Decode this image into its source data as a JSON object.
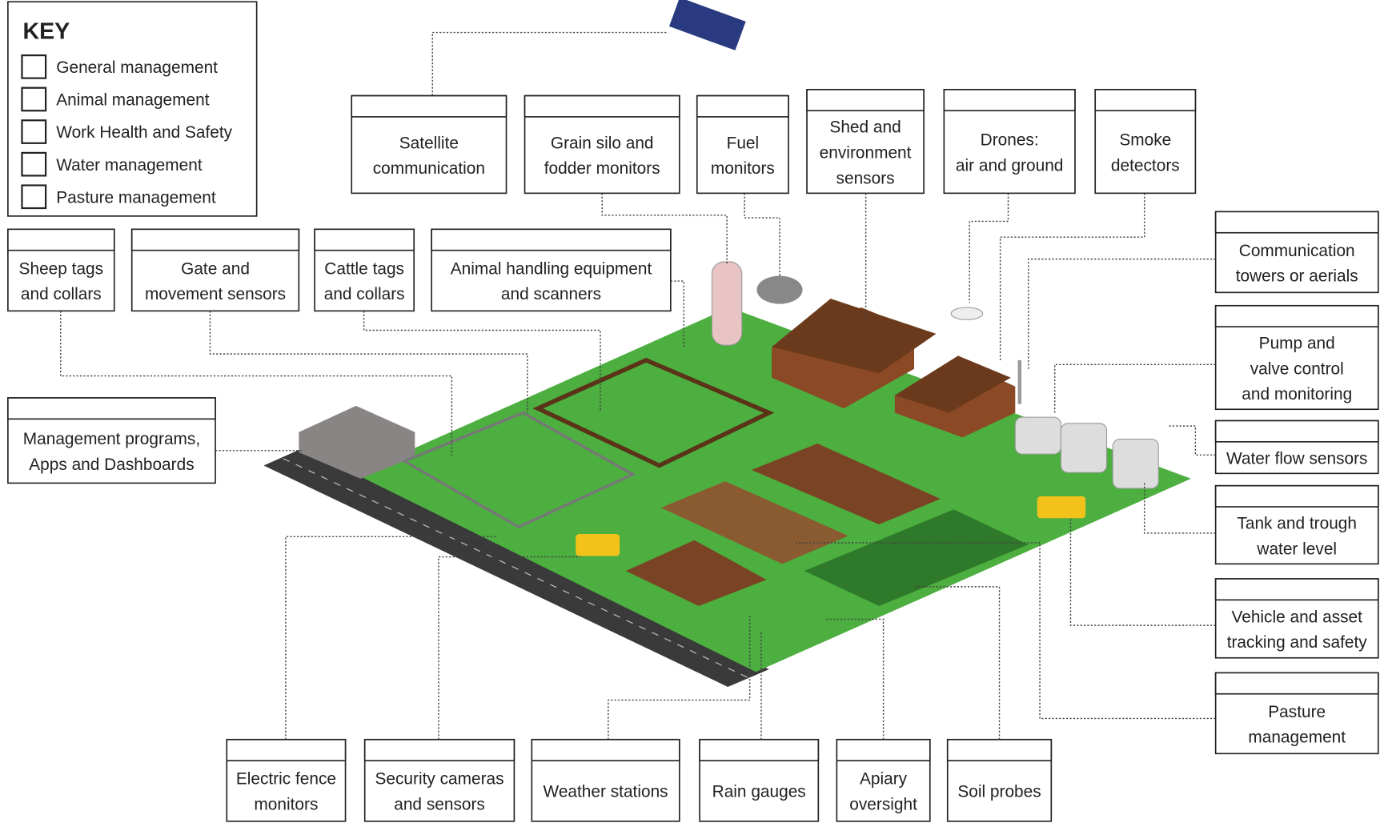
{
  "key": {
    "title": "KEY",
    "items": [
      "General management",
      "Animal management",
      "Work Health and Safety",
      "Water management",
      "Pasture management"
    ]
  },
  "labels": [
    {
      "lines": [
        "Satellite",
        "communication"
      ]
    },
    {
      "lines": [
        "Grain silo and",
        "fodder monitors"
      ]
    },
    {
      "lines": [
        "Fuel",
        "monitors"
      ]
    },
    {
      "lines": [
        "Shed and",
        "environment",
        "sensors"
      ]
    },
    {
      "lines": [
        "Drones:",
        "air and ground"
      ]
    },
    {
      "lines": [
        "Smoke",
        "detectors"
      ]
    },
    {
      "lines": [
        "Sheep tags",
        "and collars"
      ]
    },
    {
      "lines": [
        "Gate and",
        "movement sensors"
      ]
    },
    {
      "lines": [
        "Cattle tags",
        "and collars"
      ]
    },
    {
      "lines": [
        "Animal handling equipment",
        "and scanners"
      ]
    },
    {
      "lines": [
        "Management programs,",
        "Apps and Dashboards"
      ]
    },
    {
      "lines": [
        "Communication",
        "towers or aerials"
      ]
    },
    {
      "lines": [
        "Pump and",
        "valve control",
        "and monitoring"
      ]
    },
    {
      "lines": [
        "Water flow sensors"
      ]
    },
    {
      "lines": [
        "Tank and trough",
        "water level"
      ]
    },
    {
      "lines": [
        "Vehicle and asset",
        "tracking and safety"
      ]
    },
    {
      "lines": [
        "Pasture",
        "management"
      ]
    },
    {
      "lines": [
        "Electric fence",
        "monitors"
      ]
    },
    {
      "lines": [
        "Security cameras",
        "and sensors"
      ]
    },
    {
      "lines": [
        "Weather stations"
      ]
    },
    {
      "lines": [
        "Rain gauges"
      ]
    },
    {
      "lines": [
        "Apiary",
        "oversight"
      ]
    },
    {
      "lines": [
        "Soil probes"
      ]
    }
  ]
}
